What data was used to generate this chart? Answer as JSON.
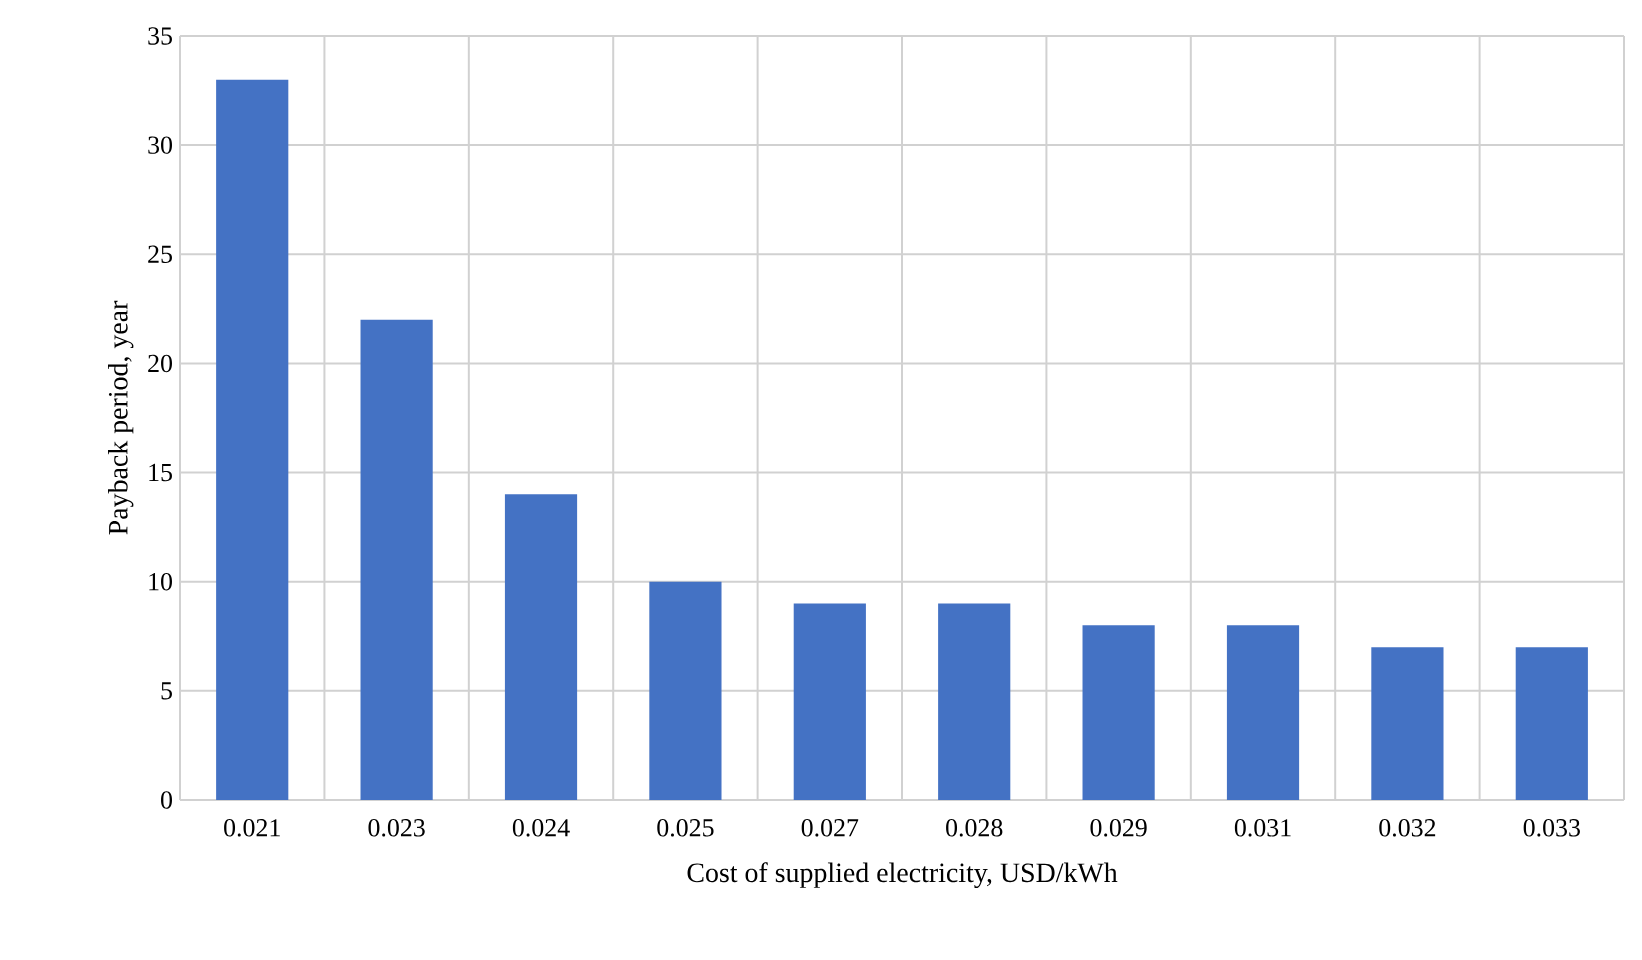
{
  "chart_data": {
    "type": "bar",
    "xlabel": "Cost of supplied electricity, USD/kWh",
    "ylabel": "Payback period, year",
    "categories": [
      "0.021",
      "0.023",
      "0.024",
      "0.025",
      "0.027",
      "0.028",
      "0.029",
      "0.031",
      "0.032",
      "0.033"
    ],
    "values": [
      33,
      22,
      14,
      10,
      9,
      9,
      8,
      8,
      7,
      7
    ],
    "color": "#4472c4",
    "ylim": [
      0,
      35
    ],
    "yticks": [
      0,
      5,
      10,
      15,
      20,
      25,
      30,
      35
    ],
    "grid": true
  }
}
